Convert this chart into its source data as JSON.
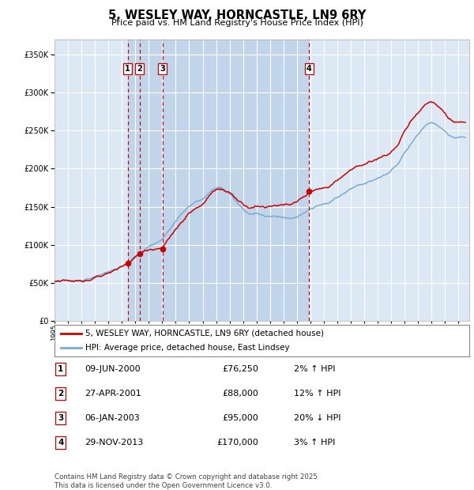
{
  "title": "5, WESLEY WAY, HORNCASTLE, LN9 6RY",
  "subtitle": "Price paid vs. HM Land Registry's House Price Index (HPI)",
  "legend_line1": "5, WESLEY WAY, HORNCASTLE, LN9 6RY (detached house)",
  "legend_line2": "HPI: Average price, detached house, East Lindsey",
  "footer_line1": "Contains HM Land Registry data © Crown copyright and database right 2025.",
  "footer_line2": "This data is licensed under the Open Government Licence v3.0.",
  "transactions": [
    {
      "num": 1,
      "date": "09-JUN-2000",
      "price": 76250,
      "pct": "2%",
      "dir": "↑"
    },
    {
      "num": 2,
      "date": "27-APR-2001",
      "price": 88000,
      "pct": "12%",
      "dir": "↑"
    },
    {
      "num": 3,
      "date": "06-JAN-2003",
      "price": 95000,
      "pct": "20%",
      "dir": "↓"
    },
    {
      "num": 4,
      "date": "29-NOV-2013",
      "price": 170000,
      "pct": "3%",
      "dir": "↑"
    }
  ],
  "vline_dates": [
    2000.44,
    2001.32,
    2003.01,
    2013.91
  ],
  "dot_dates": [
    2000.44,
    2001.32,
    2003.01,
    2013.91
  ],
  "dot_prices": [
    76250,
    88000,
    95000,
    170000
  ],
  "shade_start": 2000.44,
  "shade_end": 2013.91,
  "ylim": [
    0,
    370000
  ],
  "yticks": [
    0,
    50000,
    100000,
    150000,
    200000,
    250000,
    300000,
    350000
  ],
  "xlim_start": 1995.0,
  "xlim_end": 2025.8,
  "background_color": "#ffffff",
  "plot_bg_color": "#dce9f5",
  "shade_color": "#c0d4ea",
  "grid_color": "#ffffff",
  "red_color": "#cc0000",
  "blue_color": "#7aaad0",
  "vline_color": "#cc0000",
  "box_color": "#cc0000"
}
